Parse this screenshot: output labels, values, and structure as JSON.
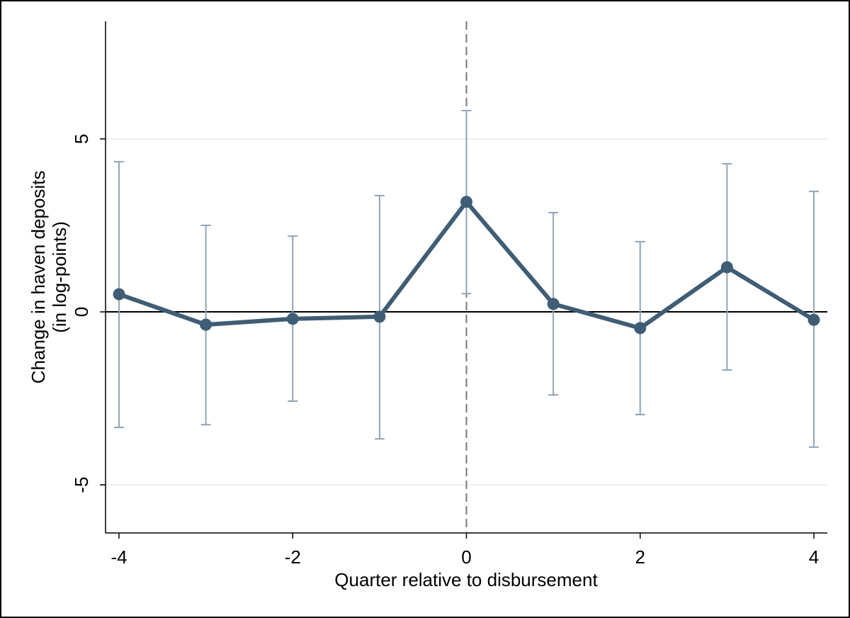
{
  "chart_data": {
    "type": "line",
    "x_label": "Quarter relative to disbursement",
    "y_label": [
      "Change in haven deposits",
      "(in log-points)"
    ],
    "x": [
      -4,
      -3,
      -2,
      -1,
      0,
      1,
      2,
      3,
      4
    ],
    "series": [
      {
        "color": "#3f5d75",
        "error_color": "#8ea6b8",
        "values": [
          0.51,
          -0.37,
          -0.2,
          -0.14,
          3.18,
          0.23,
          -0.47,
          1.29,
          -0.23
        ],
        "lower": [
          -3.34,
          -3.26,
          -2.58,
          -3.67,
          0.53,
          -2.4,
          -2.97,
          -1.68,
          -3.91
        ],
        "upper": [
          4.34,
          2.5,
          2.19,
          3.36,
          5.82,
          2.87,
          2.03,
          4.28,
          3.48
        ]
      }
    ],
    "xlim": [
      -4.155,
      4.155
    ],
    "ylim": [
      -6.39,
      8.4
    ],
    "xticks": [
      -4,
      -2,
      0,
      2,
      4
    ],
    "yticks": [
      -5,
      0,
      5
    ],
    "grid": true,
    "hline": 0,
    "vline": 0
  }
}
